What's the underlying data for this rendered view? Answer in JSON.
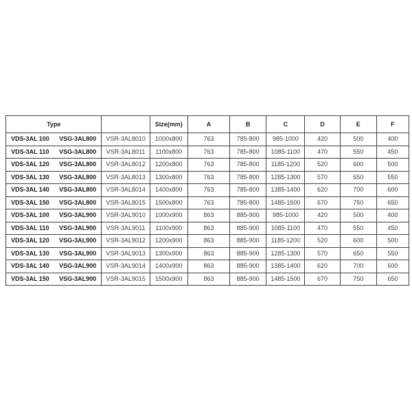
{
  "colors": {
    "background": "#ffffff",
    "border": "#3f3f3f",
    "text_bold": "#1b1b1b",
    "text_regular": "#3e3e3e"
  },
  "table": {
    "header": {
      "type_label": "Type",
      "model_label": "",
      "size_label": "Size(mm)",
      "columns": [
        "A",
        "B",
        "C",
        "D",
        "E",
        "F"
      ]
    },
    "rows": [
      {
        "vds": "VDS-3AL 100",
        "vsg": "VSG-3AL800",
        "model": "VSR-3AL8010",
        "size": "1000x800",
        "A": "763",
        "B": "785-800",
        "C": "985-1000",
        "D": "420",
        "E": "500",
        "F": "400"
      },
      {
        "vds": "VDS-3AL 110",
        "vsg": "VSG-3AL800",
        "model": "VSR-3AL8011",
        "size": "1100x800",
        "A": "763",
        "B": "785-800",
        "C": "1085-1100",
        "D": "470",
        "E": "550",
        "F": "450"
      },
      {
        "vds": "VDS-3AL 120",
        "vsg": "VSG-3AL800",
        "model": "VSR-3AL8012",
        "size": "1200x800",
        "A": "763",
        "B": "785-800",
        "C": "1185-1200",
        "D": "520",
        "E": "600",
        "F": "500"
      },
      {
        "vds": "VDS-3AL 130",
        "vsg": "VSG-3AL800",
        "model": "VSR-3AL8013",
        "size": "1300x800",
        "A": "763",
        "B": "785-800",
        "C": "1285-1300",
        "D": "570",
        "E": "650",
        "F": "550"
      },
      {
        "vds": "VDS-3AL 140",
        "vsg": "VSG-3AL800",
        "model": "VSR-3AL8014",
        "size": "1400x800",
        "A": "763",
        "B": "785-800",
        "C": "1385-1400",
        "D": "620",
        "E": "700",
        "F": "600"
      },
      {
        "vds": "VDS-3AL 150",
        "vsg": "VSG-3AL800",
        "model": "VSR-3AL8015",
        "size": "1500x800",
        "A": "763",
        "B": "785-800",
        "C": "1485-1500",
        "D": "670",
        "E": "750",
        "F": "650"
      },
      {
        "vds": "VDS-3AL 100",
        "vsg": "VSG-3AL900",
        "model": "VSR-3AL9010",
        "size": "1000x900",
        "A": "863",
        "B": "885-900",
        "C": "985-1000",
        "D": "420",
        "E": "500",
        "F": "400"
      },
      {
        "vds": "VDS-3AL 110",
        "vsg": "VSG-3AL900",
        "model": "VSR-3AL9011",
        "size": "1100x900",
        "A": "863",
        "B": "885-900",
        "C": "1085-1100",
        "D": "470",
        "E": "550",
        "F": "450"
      },
      {
        "vds": "VDS-3AL 120",
        "vsg": "VSG-3AL900",
        "model": "VSR-3AL9012",
        "size": "1200x900",
        "A": "863",
        "B": "885-900",
        "C": "1185-1200",
        "D": "520",
        "E": "600",
        "F": "500"
      },
      {
        "vds": "VDS-3AL 130",
        "vsg": "VSG-3AL900",
        "model": "VSR-3AL9013",
        "size": "1300x900",
        "A": "863",
        "B": "885-900",
        "C": "1285-1300",
        "D": "570",
        "E": "650",
        "F": "550"
      },
      {
        "vds": "VDS-3AL 140",
        "vsg": "VSG-3AL900",
        "model": "VSR-3AL9014",
        "size": "1400x900",
        "A": "863",
        "B": "885-900",
        "C": "1385-1400",
        "D": "620",
        "E": "700",
        "F": "600"
      },
      {
        "vds": "VDS-3AL 150",
        "vsg": "VSG-3AL900",
        "model": "VSR-3AL9015",
        "size": "1500x900",
        "A": "863",
        "B": "885-900",
        "C": "1485-1500",
        "D": "670",
        "E": "750",
        "F": "650"
      }
    ]
  }
}
